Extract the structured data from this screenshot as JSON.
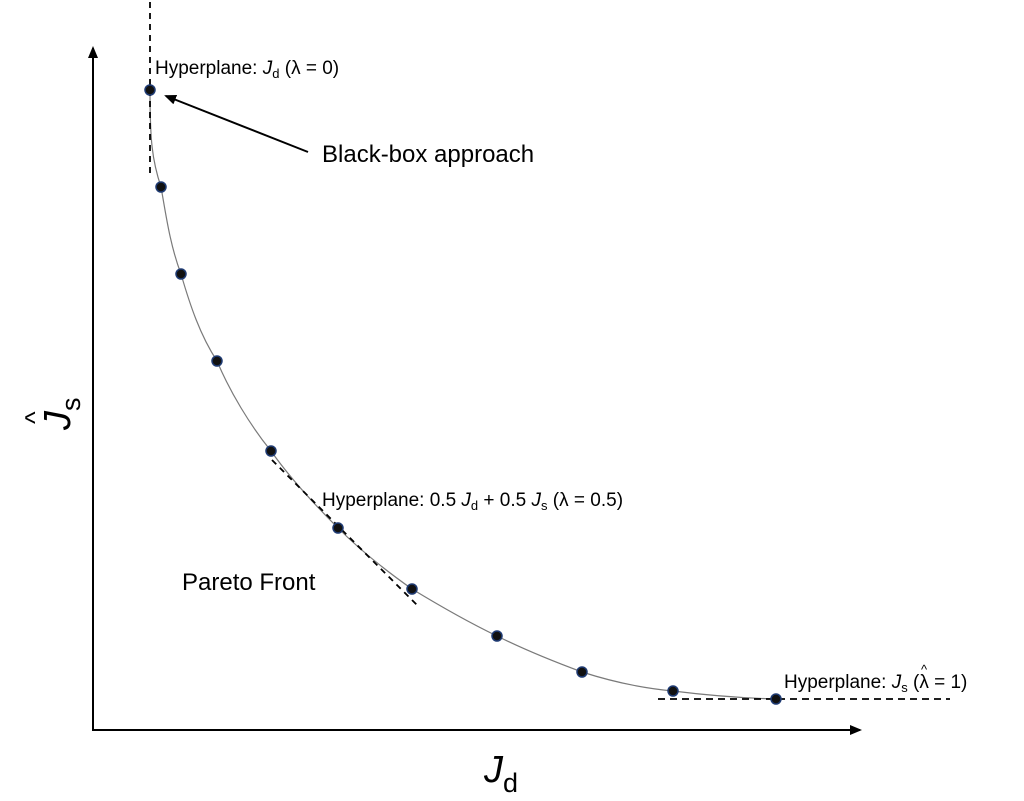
{
  "diagram": {
    "x_axis_symbol": "J",
    "x_axis_subscript": "d",
    "y_axis_symbol": "J",
    "y_axis_subscript": "s",
    "y_axis_hat": "^",
    "callout": "Black-box approach",
    "region_label": "Pareto Front",
    "hyperplane_top": {
      "prefix": "Hyperplane: ",
      "symbol": "J",
      "subscript": "d",
      "suffix": " (λ = 0)"
    },
    "hyperplane_mid": {
      "prefix": "Hyperplane: 0.5 ",
      "symbol1": "J",
      "subscript1": "d",
      "middle": " + 0.5 ",
      "symbol2": "J",
      "subscript2": "s",
      "suffix": "  (λ = 0.5)"
    },
    "hyperplane_right": {
      "prefix": "Hyperplane: ",
      "symbol": "J",
      "subscript": "s",
      "hat": "^",
      "suffix": " (λ = 1)"
    },
    "colors": {
      "curve": "#7a7a7a",
      "point_fill": "#111111",
      "point_stroke": "#1f3b73",
      "ink": "#000000"
    }
  }
}
